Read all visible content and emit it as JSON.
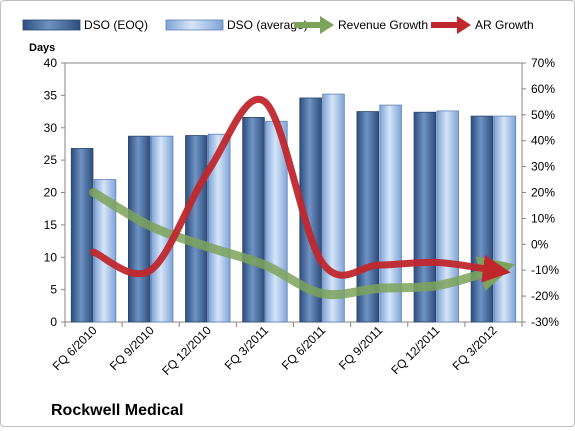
{
  "chart_data": {
    "type": "bar",
    "title": "",
    "company": "Rockwell Medical",
    "ylabel": "Days",
    "ylim": [
      0,
      40
    ],
    "yticks": [
      "0",
      "5",
      "10",
      "15",
      "20",
      "25",
      "30",
      "35",
      "40"
    ],
    "y2lim": [
      -30,
      70
    ],
    "y2ticks": [
      "-30%",
      "-20%",
      "-10%",
      "0%",
      "10%",
      "20%",
      "30%",
      "40%",
      "50%",
      "60%",
      "70%"
    ],
    "categories": [
      "FQ 6/2010",
      "FQ 9/2010",
      "FQ 12/2010",
      "FQ 3/2011",
      "FQ 6/2011",
      "FQ 9/2011",
      "FQ 12/2011",
      "FQ 3/2012"
    ],
    "series": [
      {
        "name": "DSO (EOQ)",
        "type": "bar",
        "axis": "left",
        "color": "#4a6fa5",
        "values": [
          26.8,
          28.7,
          28.8,
          31.6,
          34.6,
          32.5,
          32.4,
          31.8
        ]
      },
      {
        "name": "DSO (average)",
        "type": "bar",
        "axis": "left",
        "color": "#a9c4e8",
        "values": [
          22,
          28.7,
          29,
          31,
          35.2,
          33.5,
          32.6,
          31.8
        ]
      },
      {
        "name": "Revenue Growth",
        "type": "line",
        "axis": "right",
        "color": "#7ca35a",
        "values": [
          20,
          7,
          -1,
          -8,
          -19,
          -17,
          -16,
          -10
        ]
      },
      {
        "name": "AR Growth",
        "type": "line",
        "axis": "right",
        "color": "#c0272d",
        "values": [
          -3,
          -10,
          28,
          55,
          -7,
          -8,
          -7,
          -10
        ]
      }
    ],
    "grid": false,
    "legend": "top"
  }
}
